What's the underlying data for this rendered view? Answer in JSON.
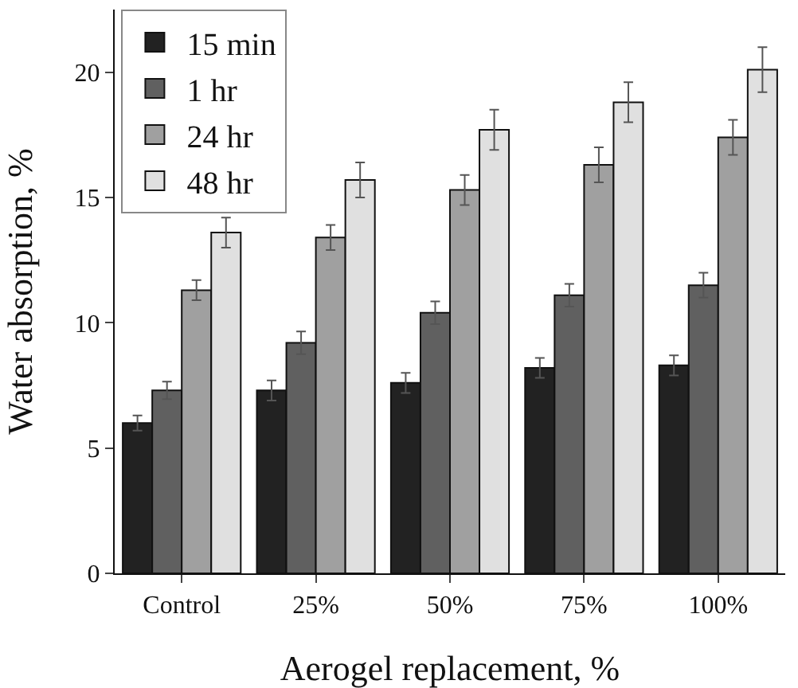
{
  "chart_data": {
    "type": "bar",
    "xlabel": "Aerogel replacement, %",
    "ylabel": "Water absorption, %",
    "categories": [
      "Control",
      "25%",
      "50%",
      "75%",
      "100%"
    ],
    "series": [
      {
        "name": "15 min",
        "color": "#222222",
        "values": [
          6.0,
          7.3,
          7.6,
          8.2,
          8.3
        ],
        "errors": [
          0.3,
          0.4,
          0.4,
          0.4,
          0.4
        ]
      },
      {
        "name": "1 hr",
        "color": "#606060",
        "values": [
          7.3,
          9.2,
          10.4,
          11.1,
          11.5
        ],
        "errors": [
          0.35,
          0.45,
          0.45,
          0.45,
          0.5
        ]
      },
      {
        "name": "24 hr",
        "color": "#a0a0a0",
        "values": [
          11.3,
          13.4,
          15.3,
          16.3,
          17.4
        ],
        "errors": [
          0.4,
          0.5,
          0.6,
          0.7,
          0.7
        ]
      },
      {
        "name": "48 hr",
        "color": "#e0e0e0",
        "values": [
          13.6,
          15.7,
          17.7,
          18.8,
          20.1
        ],
        "errors": [
          0.6,
          0.7,
          0.8,
          0.8,
          0.9
        ]
      }
    ],
    "ylim": [
      0,
      22.5
    ],
    "yticks": [
      0,
      5,
      10,
      15,
      20
    ],
    "grid": false,
    "legend": "top left"
  }
}
